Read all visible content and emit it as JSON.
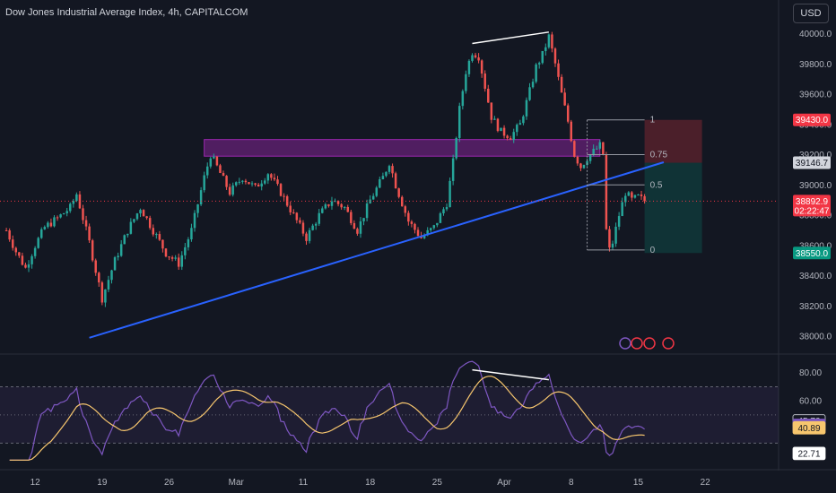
{
  "header": {
    "title": "Dow Jones Industrial Average Index, 4h, CAPITALCOM",
    "currency_button": "USD"
  },
  "colors": {
    "background": "#131722",
    "up": "#26a69a",
    "down": "#ef5350",
    "trendline": "#2962ff",
    "zone": "#9c27b0",
    "rsi_line": "#7e57c2",
    "rsi_ma": "#f7c66e",
    "grid": "#1e222d",
    "axis_text": "#b2b5be"
  },
  "chart_data": [
    {
      "type": "candlestick",
      "title": "Dow Jones Industrial Average Index, 4h, CAPITALCOM",
      "ylim": [
        37900,
        40080
      ],
      "y_ticks": [
        "38000.0",
        "38200.0",
        "38400.0",
        "38600.0",
        "38800.0",
        "39000.0",
        "39200.0",
        "39400.0",
        "39600.0",
        "39800.0",
        "40000.0"
      ],
      "x_ticks": [
        "12",
        "19",
        "26",
        "Mar",
        "11",
        "18",
        "25",
        "Apr",
        "8",
        "15",
        "22"
      ],
      "grid": false,
      "price_path": [
        {
          "t": 0,
          "v": 38700
        },
        {
          "t": 3,
          "v": 38560
        },
        {
          "t": 6,
          "v": 38450
        },
        {
          "t": 9,
          "v": 38600
        },
        {
          "t": 12,
          "v": 38720
        },
        {
          "t": 16,
          "v": 38780
        },
        {
          "t": 20,
          "v": 38850
        },
        {
          "t": 22,
          "v": 38940
        },
        {
          "t": 26,
          "v": 38620
        },
        {
          "t": 30,
          "v": 38250
        },
        {
          "t": 34,
          "v": 38500
        },
        {
          "t": 38,
          "v": 38700
        },
        {
          "t": 42,
          "v": 38850
        },
        {
          "t": 46,
          "v": 38700
        },
        {
          "t": 50,
          "v": 38550
        },
        {
          "t": 54,
          "v": 38480
        },
        {
          "t": 58,
          "v": 38700
        },
        {
          "t": 62,
          "v": 39050
        },
        {
          "t": 64,
          "v": 39200
        },
        {
          "t": 66,
          "v": 39120
        },
        {
          "t": 70,
          "v": 38950
        },
        {
          "t": 74,
          "v": 39050
        },
        {
          "t": 78,
          "v": 38980
        },
        {
          "t": 82,
          "v": 39080
        },
        {
          "t": 86,
          "v": 38950
        },
        {
          "t": 90,
          "v": 38800
        },
        {
          "t": 94,
          "v": 38650
        },
        {
          "t": 98,
          "v": 38800
        },
        {
          "t": 102,
          "v": 38900
        },
        {
          "t": 106,
          "v": 38850
        },
        {
          "t": 110,
          "v": 38700
        },
        {
          "t": 114,
          "v": 38900
        },
        {
          "t": 118,
          "v": 39050
        },
        {
          "t": 120,
          "v": 39150
        },
        {
          "t": 122,
          "v": 39000
        },
        {
          "t": 126,
          "v": 38760
        },
        {
          "t": 130,
          "v": 38650
        },
        {
          "t": 134,
          "v": 38720
        },
        {
          "t": 138,
          "v": 38880
        },
        {
          "t": 140,
          "v": 39150
        },
        {
          "t": 142,
          "v": 39500
        },
        {
          "t": 144,
          "v": 39750
        },
        {
          "t": 146,
          "v": 39880
        },
        {
          "t": 148,
          "v": 39850
        },
        {
          "t": 150,
          "v": 39650
        },
        {
          "t": 152,
          "v": 39450
        },
        {
          "t": 155,
          "v": 39350
        },
        {
          "t": 158,
          "v": 39320
        },
        {
          "t": 161,
          "v": 39400
        },
        {
          "t": 164,
          "v": 39620
        },
        {
          "t": 166,
          "v": 39780
        },
        {
          "t": 168,
          "v": 39860
        },
        {
          "t": 170,
          "v": 39980
        },
        {
          "t": 172,
          "v": 39800
        },
        {
          "t": 174,
          "v": 39600
        },
        {
          "t": 176,
          "v": 39420
        },
        {
          "t": 178,
          "v": 39200
        },
        {
          "t": 180,
          "v": 39120
        },
        {
          "t": 182,
          "v": 39180
        },
        {
          "t": 184,
          "v": 39220
        },
        {
          "t": 186,
          "v": 39260
        },
        {
          "t": 187,
          "v": 39200
        },
        {
          "t": 188,
          "v": 38700
        },
        {
          "t": 189,
          "v": 38570
        },
        {
          "t": 190,
          "v": 38620
        },
        {
          "t": 192,
          "v": 38800
        },
        {
          "t": 194,
          "v": 38950
        },
        {
          "t": 196,
          "v": 38900
        },
        {
          "t": 198,
          "v": 38920
        },
        {
          "t": 200,
          "v": 38893
        }
      ],
      "rsi": {
        "ylim": [
          15,
          90
        ],
        "y_ticks": [
          "80.00",
          "60.00",
          "40.00"
        ],
        "upper_band": 70,
        "lower_band": 30,
        "badges": [
          {
            "value": "45.70",
            "level": 45.7,
            "bg": "#131722",
            "fg": "#d1d4dc",
            "border": "#d1d4dc"
          },
          {
            "value": "42.67",
            "level": 42.67,
            "bg": "#7e57c2",
            "fg": "#ffffff",
            "border": "#7e57c2"
          },
          {
            "value": "40.89",
            "level": 40.89,
            "bg": "#f7c66e",
            "fg": "#131722",
            "border": "#f7c66e"
          },
          {
            "value": "22.71",
            "level": 22.71,
            "bg": "#ffffff",
            "fg": "#131722",
            "border": "#ffffff"
          }
        ]
      },
      "annotations": {
        "zone": {
          "top": 39300,
          "bottom": 39190,
          "t_start": 62,
          "t_end": 186
        },
        "trendline": {
          "from": {
            "t": 26,
            "v": 37990
          },
          "to": {
            "t": 206,
            "v": 39150
          }
        },
        "divergence_price": {
          "from": {
            "t": 146,
            "v": 39935
          },
          "to": {
            "t": 170,
            "v": 40010
          }
        },
        "divergence_rsi": {
          "from": {
            "t": 146,
            "v": 82
          },
          "to": {
            "t": 170,
            "v": 75
          }
        },
        "fib": {
          "t_start": 182,
          "t_end": 200,
          "levels": [
            {
              "label": "1",
              "v": 39430
            },
            {
              "label": "0.75",
              "v": 39200
            },
            {
              "label": "0.5",
              "v": 39000
            },
            {
              "label": "0",
              "v": 38570
            }
          ]
        },
        "position": {
          "t_start": 200,
          "t_end": 218,
          "stop": 39430,
          "entry": 39146.7,
          "target": 38550
        },
        "current_price": 38892.9
      },
      "price_badges": [
        {
          "value": "39430.0",
          "level": 39430,
          "bg": "#f23645",
          "fg": "#ffffff"
        },
        {
          "value": "39146.7",
          "level": 39146.7,
          "bg": "#d1d4dc",
          "fg": "#131722"
        },
        {
          "value": "38892.9",
          "sub": "02:22:47",
          "level": 38892.9,
          "bg": "#f23645",
          "fg": "#ffffff"
        },
        {
          "value": "38550.0",
          "level": 38550,
          "bg": "#089981",
          "fg": "#ffffff"
        }
      ]
    }
  ]
}
